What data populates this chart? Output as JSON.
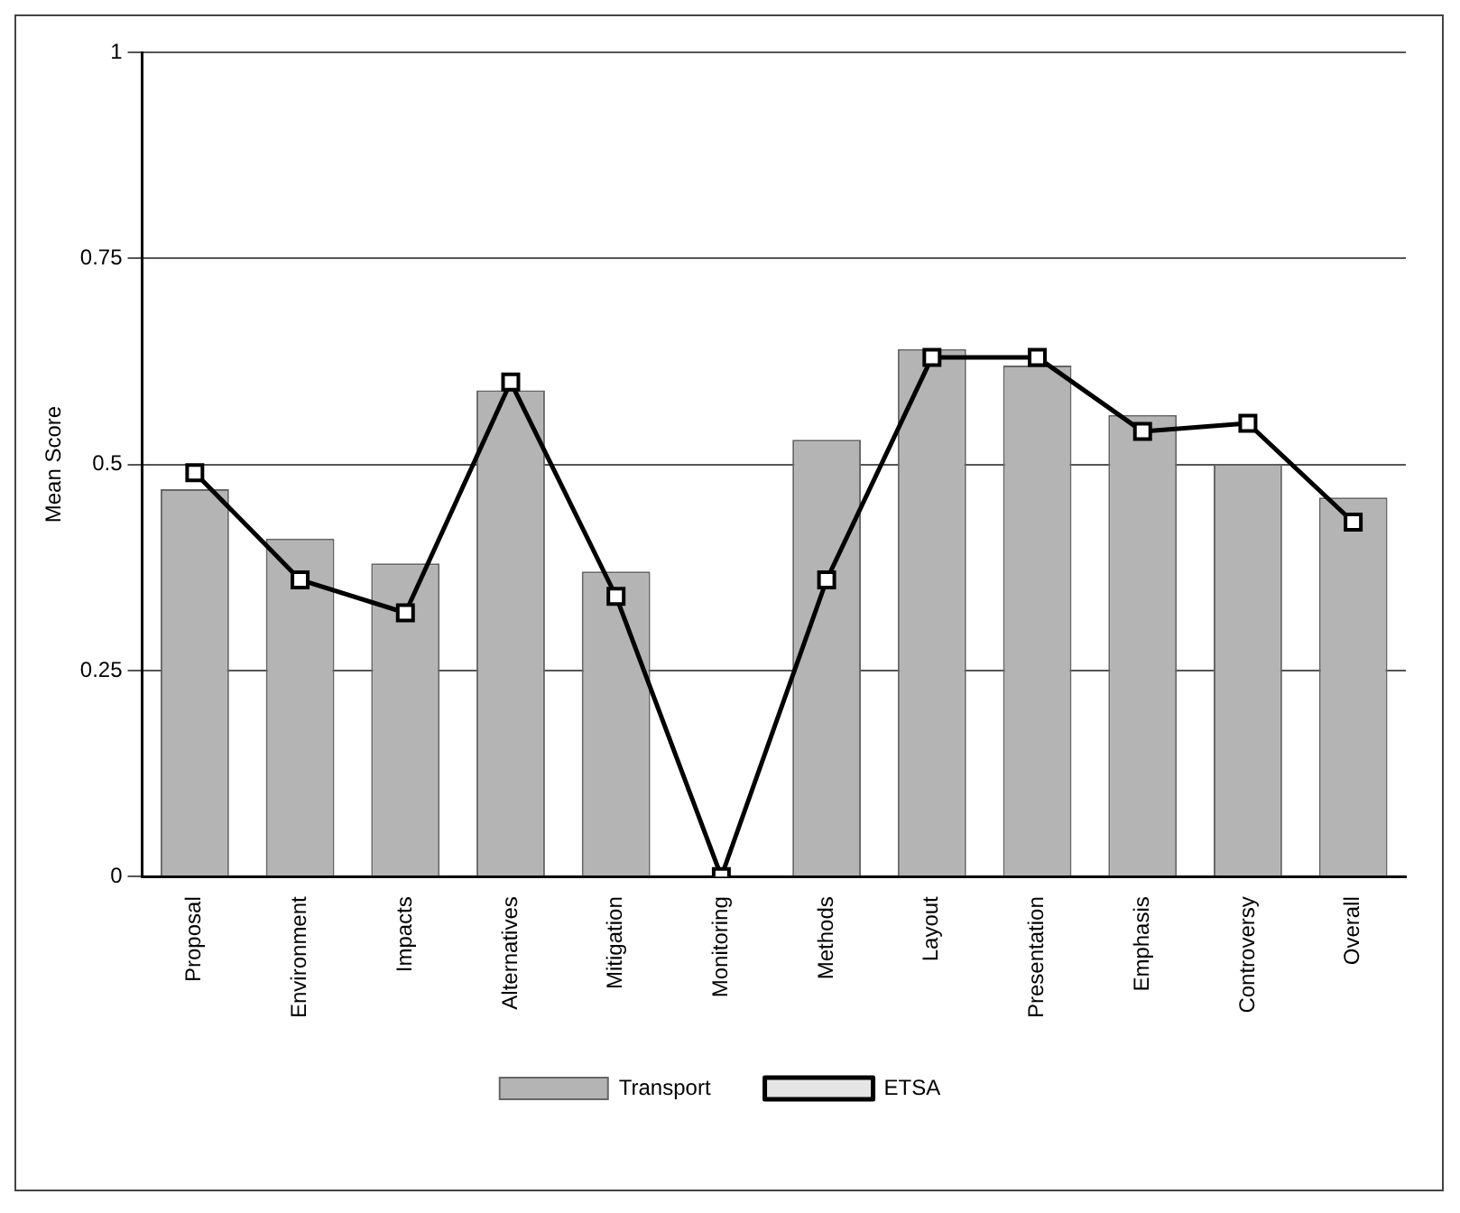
{
  "chart_data": {
    "type": "bar",
    "ylabel": "Mean Score",
    "categories": [
      "Proposal",
      "Environment",
      "Impacts",
      "Alternatives",
      "Mitigation",
      "Monitoring",
      "Methods",
      "Layout",
      "Presentation",
      "Emphasis",
      "Controversy",
      "Overall"
    ],
    "series": [
      {
        "name": "Transport",
        "color": "#b4b4b4",
        "values": [
          0.47,
          0.41,
          0.38,
          0.59,
          0.37,
          0,
          0.53,
          0.64,
          0.62,
          0.56,
          0.5,
          0.46
        ]
      },
      {
        "name": "ETSA",
        "type": "line",
        "color": "#000000",
        "marker": "square",
        "values": [
          0.49,
          0.36,
          0.32,
          0.6,
          0.34,
          0,
          0.36,
          0.63,
          0.63,
          0.54,
          0.55,
          0.43
        ]
      }
    ],
    "ylim": [
      0,
      1
    ],
    "yticks": [
      0,
      0.25,
      0.5,
      0.75,
      1
    ],
    "grid": "y",
    "legend": "bottom"
  }
}
